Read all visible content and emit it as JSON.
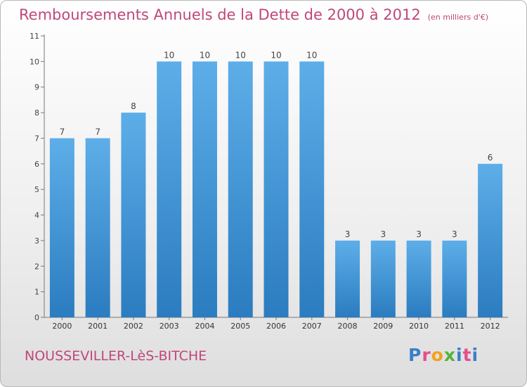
{
  "header": {
    "title": "Remboursements Annuels de la Dette de 2000 à 2012",
    "subtitle": "(en milliers d'€)"
  },
  "footer": {
    "city": "NOUSSEVILLER-LèS-BITCHE",
    "brand": "Proxiti"
  },
  "chart_data": {
    "type": "bar",
    "title": "Remboursements Annuels de la Dette de 2000 à 2012",
    "subtitle": "(en milliers d'€)",
    "xlabel": "",
    "ylabel": "",
    "categories": [
      "2000",
      "2001",
      "2002",
      "2003",
      "2004",
      "2005",
      "2006",
      "2007",
      "2008",
      "2009",
      "2010",
      "2011",
      "2012"
    ],
    "values": [
      7,
      7,
      8,
      10,
      10,
      10,
      10,
      10,
      3,
      3,
      3,
      3,
      6
    ],
    "ylim": [
      0,
      11
    ],
    "yticks": [
      0,
      1,
      2,
      3,
      4,
      5,
      6,
      7,
      8,
      9,
      10,
      11
    ],
    "grid": false,
    "bar_color_top": "#5daee8",
    "bar_color_bottom": "#2b7cc0"
  }
}
